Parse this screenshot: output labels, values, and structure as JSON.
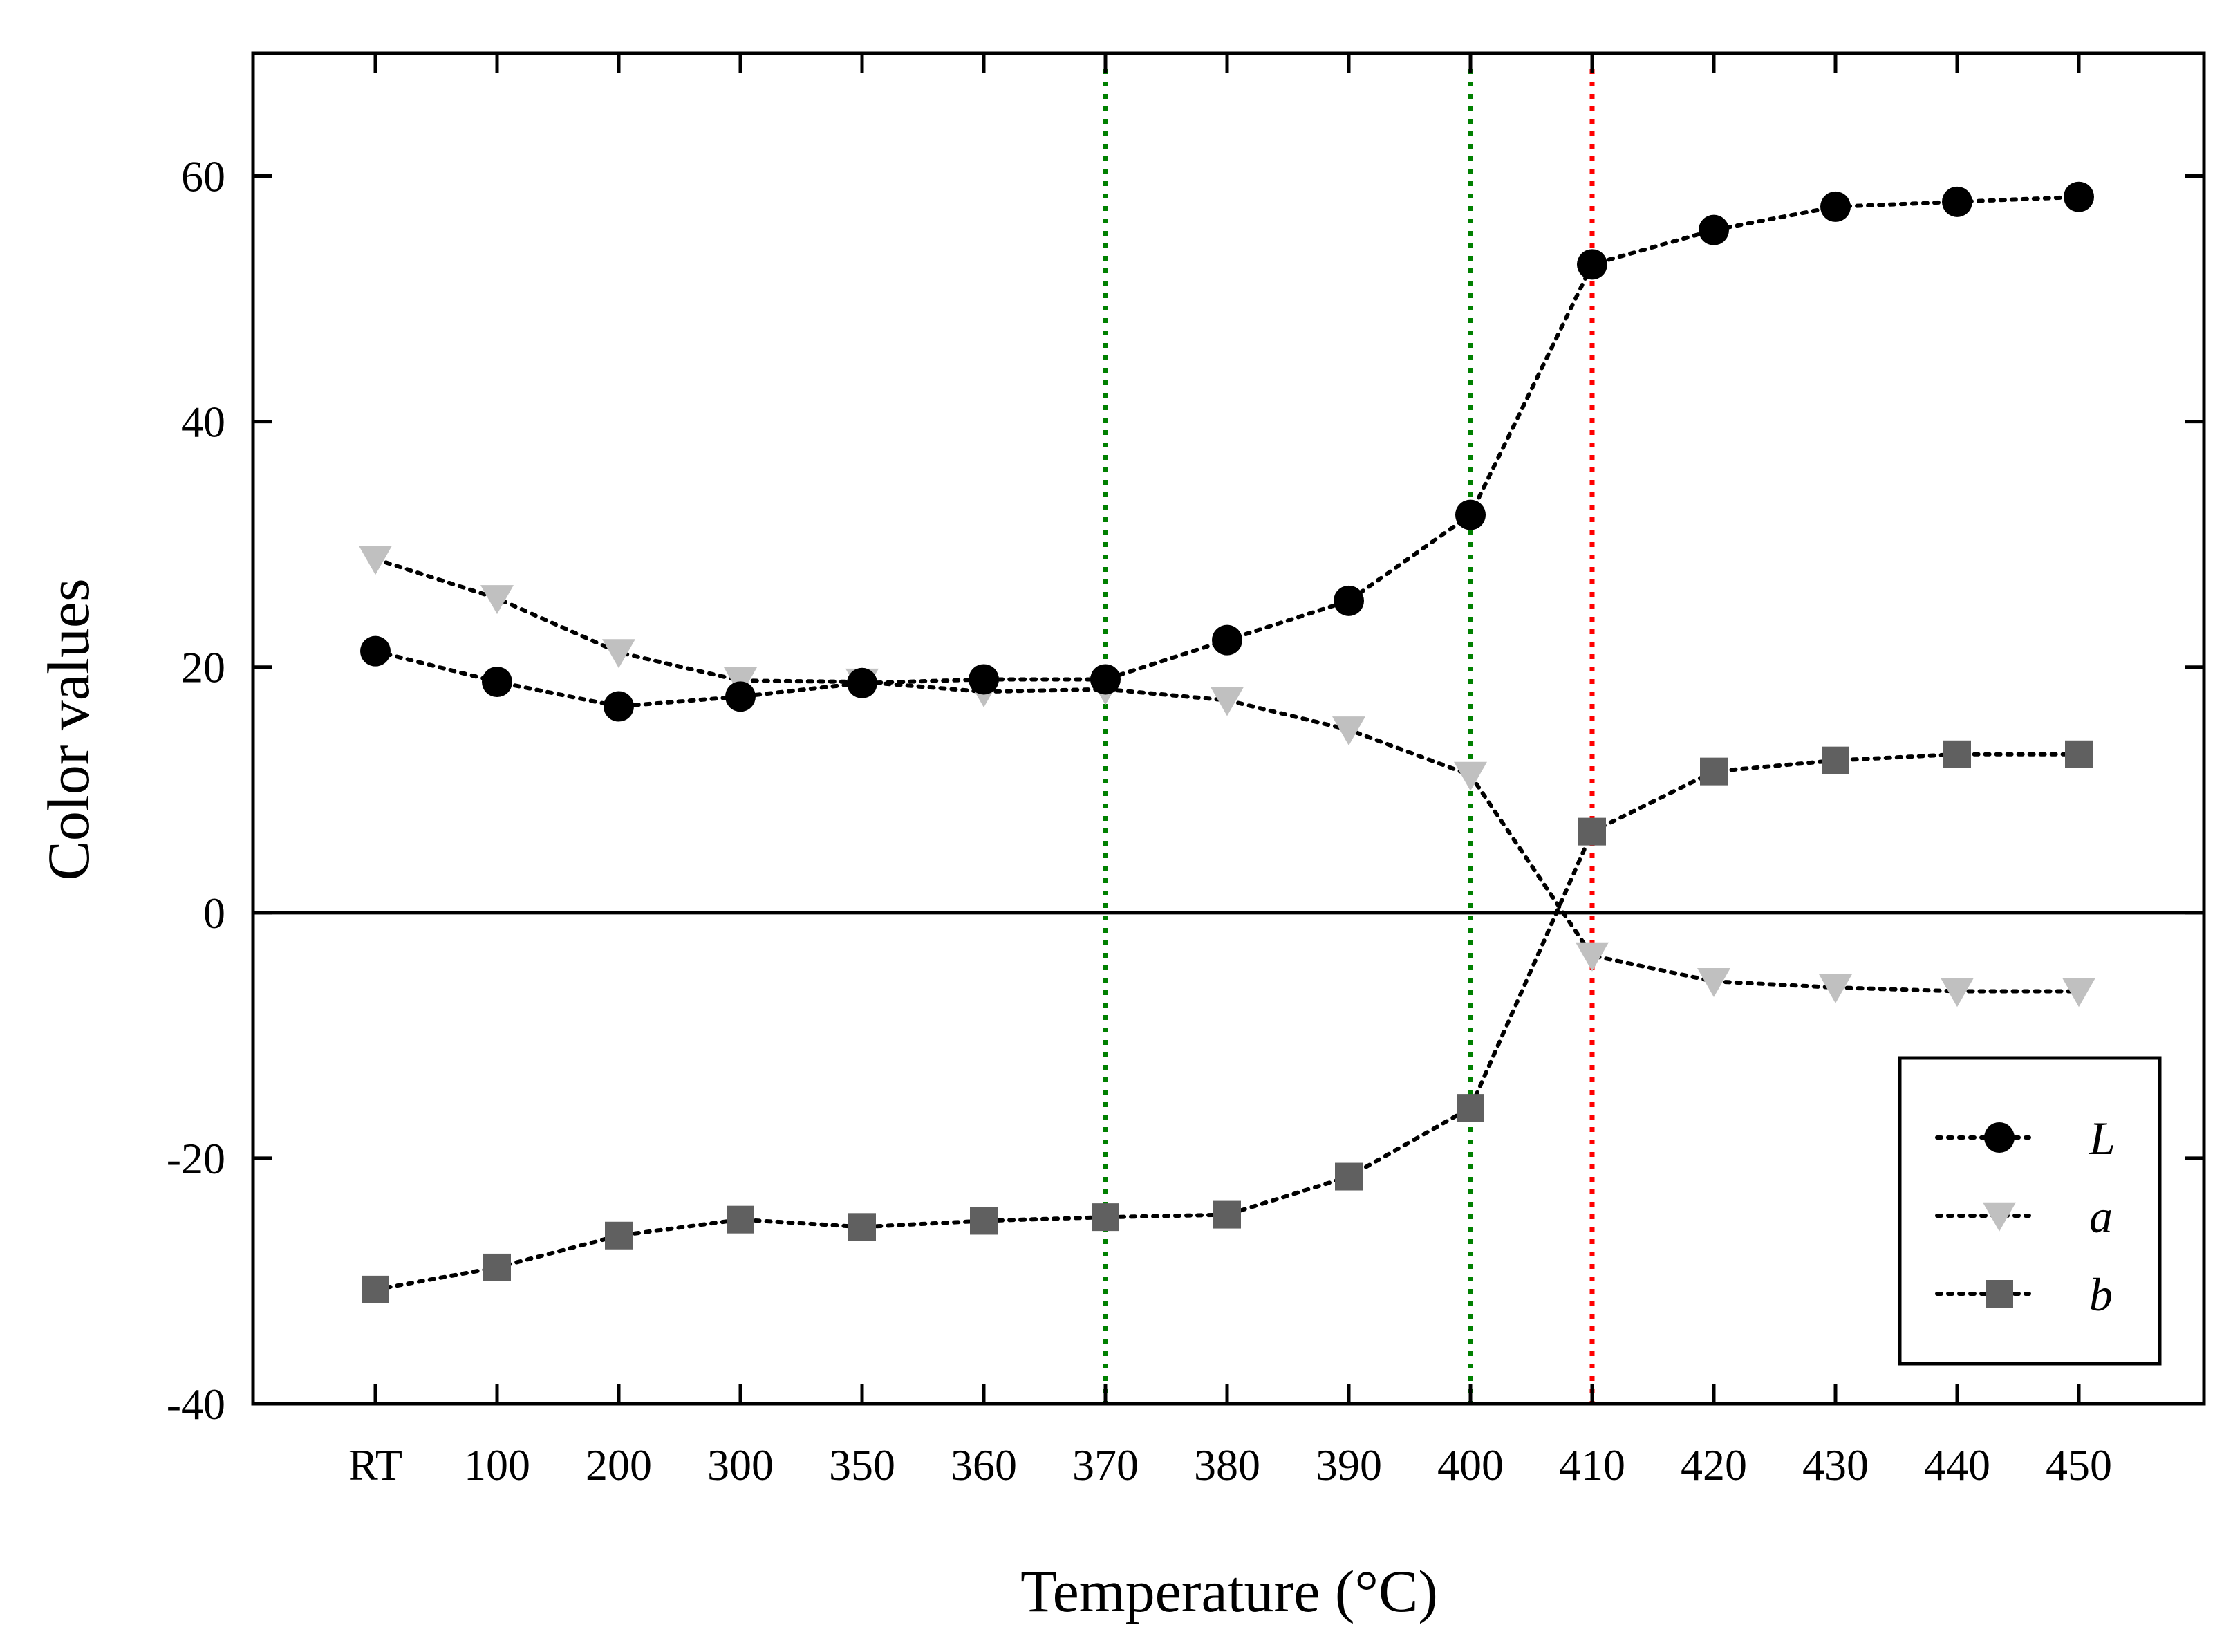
{
  "chart_data": {
    "type": "line",
    "title": "",
    "xlabel": "Temperature (°C)",
    "ylabel": "Color values",
    "categories": [
      "RT",
      "100",
      "200",
      "300",
      "350",
      "360",
      "370",
      "380",
      "390",
      "400",
      "410",
      "420",
      "430",
      "440",
      "450"
    ],
    "ylim": [
      -40,
      70
    ],
    "yticks": [
      -40,
      -20,
      0,
      20,
      40,
      60
    ],
    "grid": false,
    "legend_position": "bottom-right",
    "series": [
      {
        "name": "L",
        "marker": "circle",
        "color": "#000000",
        "values": [
          21.3,
          18.8,
          16.8,
          17.6,
          18.7,
          19.0,
          19.0,
          22.2,
          25.4,
          32.4,
          52.8,
          55.6,
          57.5,
          57.9,
          58.3
        ]
      },
      {
        "name": "a",
        "marker": "triangle-down",
        "color": "#c0c0c0",
        "values": [
          28.8,
          25.6,
          21.2,
          18.9,
          18.8,
          18.0,
          18.2,
          17.3,
          14.9,
          11.2,
          -3.5,
          -5.6,
          -6.1,
          -6.4,
          -6.4
        ]
      },
      {
        "name": "b",
        "marker": "square",
        "color": "#606060",
        "values": [
          -30.7,
          -28.9,
          -26.3,
          -25.0,
          -25.6,
          -25.1,
          -24.8,
          -24.6,
          -21.5,
          -15.9,
          6.6,
          11.5,
          12.4,
          12.9,
          12.9
        ]
      }
    ],
    "reference_lines": [
      {
        "category": "370",
        "color": "#008000"
      },
      {
        "category": "400",
        "color": "#008000"
      },
      {
        "category": "410",
        "color": "#ff0000"
      }
    ]
  }
}
